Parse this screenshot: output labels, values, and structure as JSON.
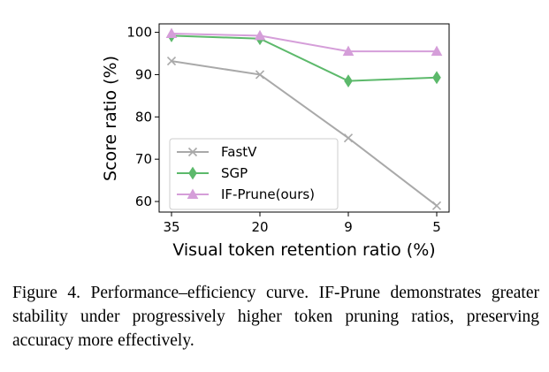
{
  "chart_data": {
    "type": "line",
    "categories": [
      "35",
      "20",
      "9",
      "5"
    ],
    "xlabel": "Visual token retention ratio (%)",
    "ylabel": "Score ratio (%)",
    "ylim": [
      57.5,
      102
    ],
    "yticks": [
      60,
      70,
      80,
      90,
      100
    ],
    "grid": false,
    "legend_position": "lower-left",
    "series": [
      {
        "name": "FastV",
        "values": [
          93.2,
          90.0,
          75.0,
          59.0
        ],
        "color": "#a9a9a9",
        "marker": "x"
      },
      {
        "name": "SGP",
        "values": [
          99.2,
          98.5,
          88.5,
          89.3
        ],
        "color": "#5cb96b",
        "marker": "diamond"
      },
      {
        "name": "IF-Prune(ours)",
        "values": [
          99.7,
          99.2,
          95.5,
          95.5
        ],
        "color": "#d59ed9",
        "marker": "triangle"
      }
    ]
  },
  "caption": "Figure 4. Performance–efficiency curve. IF-Prune demonstrates greater stability under progressively higher token pruning ratios, preserving accuracy more effectively."
}
